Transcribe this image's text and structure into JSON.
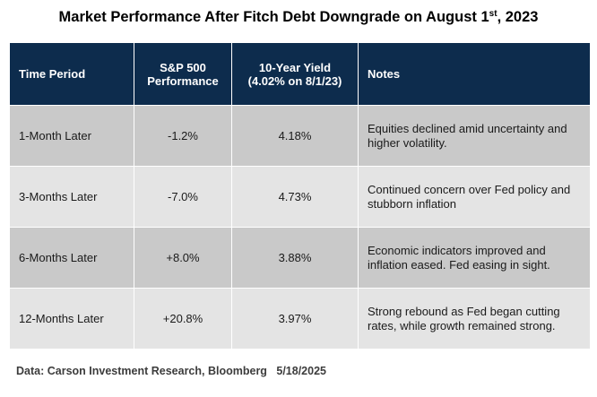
{
  "title": {
    "main": "Market Performance After Fitch Debt Downgrade on August 1",
    "superscript": "st",
    "suffix": ", 2023"
  },
  "chart_data": {
    "type": "table",
    "columns": [
      {
        "line1": "Time Period",
        "line2": ""
      },
      {
        "line1": "S&P 500",
        "line2": "Performance"
      },
      {
        "line1": "10-Year Yield",
        "line2": "(4.02% on 8/1/23)"
      },
      {
        "line1": "Notes",
        "line2": ""
      }
    ],
    "rows": [
      {
        "period": "1-Month Later",
        "sp500": "-1.2%",
        "yield": "4.18%",
        "notes": "Equities declined amid uncertainty and higher volatility."
      },
      {
        "period": "3-Months Later",
        "sp500": "-7.0%",
        "yield": "4.73%",
        "notes": "Continued concern over Fed policy and stubborn inflation"
      },
      {
        "period": "6-Months Later",
        "sp500": "+8.0%",
        "yield": "3.88%",
        "notes": "Economic indicators improved and inflation eased. Fed easing in sight."
      },
      {
        "period": "12-Months Later",
        "sp500": "+20.8%",
        "yield": "3.97%",
        "notes": "Strong rebound as Fed began cutting rates, while growth remained strong."
      }
    ]
  },
  "colors": {
    "header_bg": "#0d2c4d",
    "header_text": "#ffffff",
    "row_dark": "#c9c9c9",
    "row_light": "#e4e4e4"
  },
  "footer": {
    "source": "Data: Carson Investment Research, Bloomberg",
    "date": "5/18/2025"
  }
}
